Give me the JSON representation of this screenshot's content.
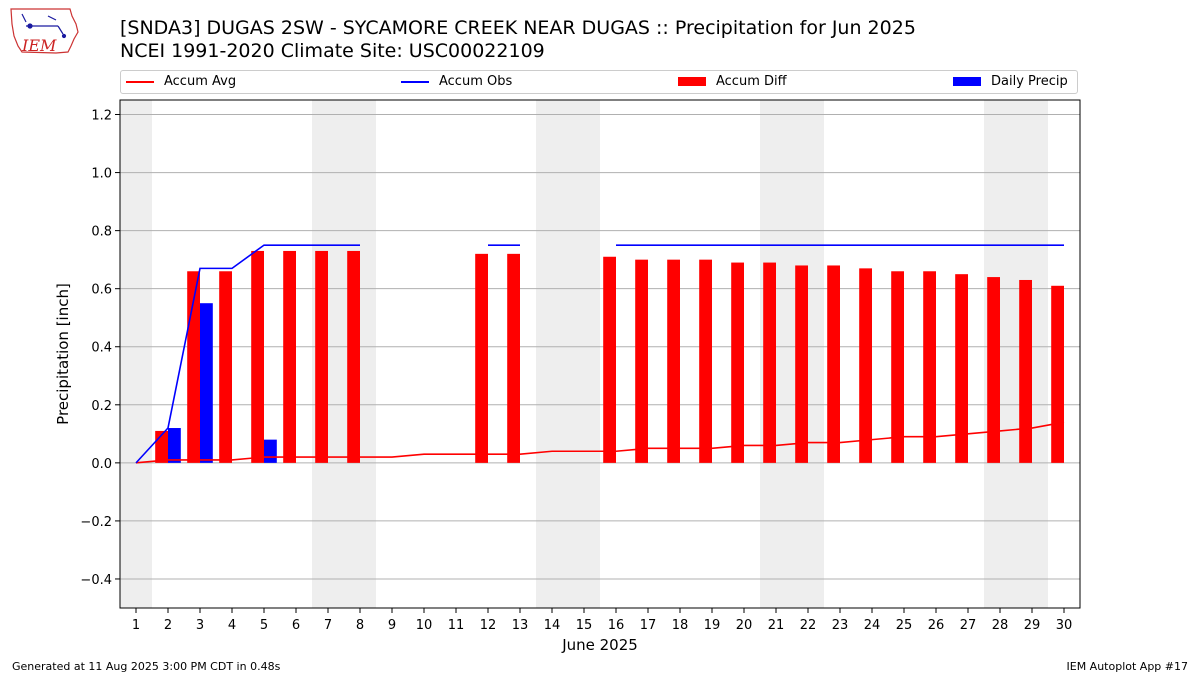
{
  "header": {
    "title_line1": "[SNDA3] DUGAS 2SW - SYCAMORE CREEK NEAR DUGAS :: Precipitation for Jun 2025",
    "title_line2": "NCEI 1991-2020 Climate Site: USC00022109",
    "logo_text": "IEM"
  },
  "legend": {
    "accum_avg": "Accum Avg",
    "accum_obs": "Accum Obs",
    "accum_diff": "Accum Diff",
    "daily_precip": "Daily Precip"
  },
  "footer": {
    "generated": "Generated at 11 Aug 2025 3:00 PM CDT in 0.48s",
    "app": "IEM Autoplot App #17"
  },
  "colors": {
    "accum_avg": "#ff0000",
    "accum_obs": "#0000ff",
    "accum_diff": "#ff0000",
    "daily_precip": "#0000ff",
    "weekend_band": "#eeeeee",
    "grid": "#b0b0b0"
  },
  "chart_data": {
    "type": "bar",
    "xlabel": "June 2025",
    "ylabel": "Precipitation [inch]",
    "xlim": [
      0.5,
      30.5
    ],
    "ylim": [
      -0.5,
      1.25
    ],
    "yticks": [
      -0.4,
      -0.2,
      0.0,
      0.2,
      0.4,
      0.6,
      0.8,
      1.0,
      1.2
    ],
    "ytick_labels": [
      "−0.4",
      "−0.2",
      "0.0",
      "0.2",
      "0.4",
      "0.6",
      "0.8",
      "1.0",
      "1.2"
    ],
    "grid": "horizontal",
    "legend_position": "top",
    "days": [
      1,
      2,
      3,
      4,
      5,
      6,
      7,
      8,
      9,
      10,
      11,
      12,
      13,
      14,
      15,
      16,
      17,
      18,
      19,
      20,
      21,
      22,
      23,
      24,
      25,
      26,
      27,
      28,
      29,
      30
    ],
    "weekend_bands": [
      [
        0.5,
        1.5
      ],
      [
        6.5,
        8.5
      ],
      [
        13.5,
        15.5
      ],
      [
        20.5,
        22.5
      ],
      [
        27.5,
        29.5
      ]
    ],
    "series": [
      {
        "name": "Accum Avg",
        "kind": "line",
        "values": [
          0.0,
          0.01,
          0.01,
          0.01,
          0.02,
          0.02,
          0.02,
          0.02,
          0.02,
          0.03,
          0.03,
          0.03,
          0.03,
          0.04,
          0.04,
          0.04,
          0.05,
          0.05,
          0.05,
          0.06,
          0.06,
          0.07,
          0.07,
          0.08,
          0.09,
          0.09,
          0.1,
          0.11,
          0.12,
          0.14
        ]
      },
      {
        "name": "Accum Obs",
        "kind": "line",
        "values": [
          0.0,
          0.12,
          0.67,
          0.67,
          0.75,
          0.75,
          0.75,
          0.75,
          null,
          null,
          null,
          0.75,
          0.75,
          null,
          null,
          0.75,
          0.75,
          0.75,
          0.75,
          0.75,
          0.75,
          0.75,
          0.75,
          0.75,
          0.75,
          0.75,
          0.75,
          0.75,
          0.75,
          0.75
        ]
      },
      {
        "name": "Accum Diff",
        "kind": "bar",
        "values": [
          null,
          0.11,
          0.66,
          0.66,
          0.73,
          0.73,
          0.73,
          0.73,
          null,
          null,
          null,
          0.72,
          0.72,
          null,
          null,
          0.71,
          0.7,
          0.7,
          0.7,
          0.69,
          0.69,
          0.68,
          0.68,
          0.67,
          0.66,
          0.66,
          0.65,
          0.64,
          0.63,
          0.61
        ]
      },
      {
        "name": "Daily Precip",
        "kind": "bar",
        "values": [
          null,
          0.12,
          0.55,
          null,
          0.08,
          null,
          null,
          null,
          null,
          null,
          null,
          null,
          null,
          null,
          null,
          null,
          null,
          null,
          null,
          null,
          null,
          null,
          null,
          null,
          null,
          null,
          null,
          null,
          null,
          null
        ]
      }
    ]
  }
}
